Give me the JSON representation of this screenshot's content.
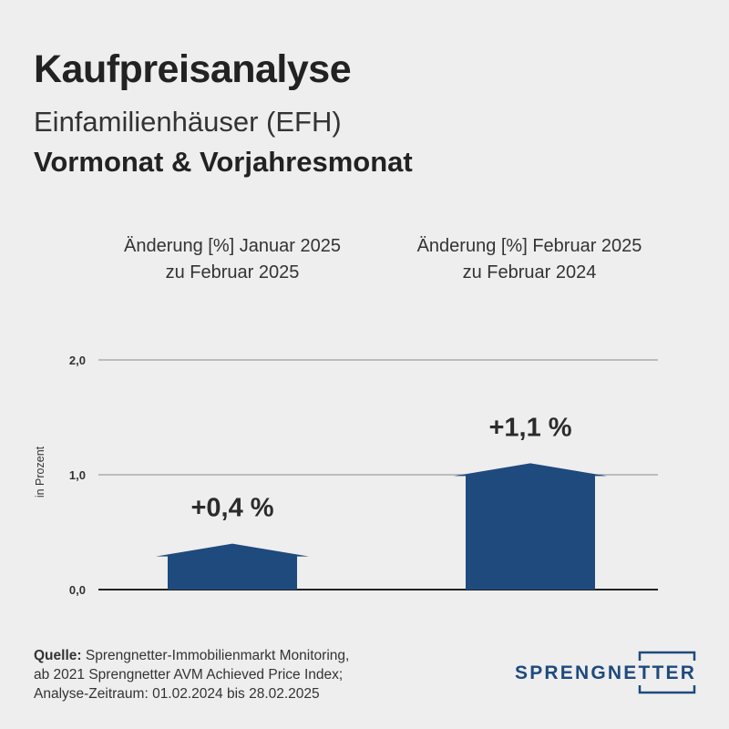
{
  "header": {
    "title": "Kaufpreisanalyse",
    "subtitle": "Einfamilienhäuser (EFH)",
    "subtitle2": "Vormonat & Vorjahresmonat"
  },
  "panels": [
    {
      "line1": "Änderung [%] Januar 2025",
      "line2": "zu Februar 2025"
    },
    {
      "line1": "Änderung [%] Februar 2025",
      "line2": "zu Februar 2024"
    }
  ],
  "chart_data": {
    "type": "bar",
    "categories": [
      "Änderung [%] Januar 2025 zu Februar 2025",
      "Änderung [%] Februar 2025 zu Februar 2024"
    ],
    "values": [
      0.4,
      1.1
    ],
    "value_labels": [
      "+0,4 %",
      "+1,1 %"
    ],
    "ylabel": "in Prozent",
    "yticks": [
      "0,0",
      "1,0",
      "2,0"
    ],
    "ytick_values": [
      0,
      1,
      2
    ],
    "ylim": [
      0,
      2
    ],
    "grid": true,
    "bar_color": "#1e4a7e"
  },
  "source": {
    "label": "Quelle:",
    "line1": "Sprengnetter-Immobilienmarkt Monitoring,",
    "line2": "ab 2021 Sprengnetter AVM Achieved Price Index;",
    "line3": "Analyse-Zeitraum: 01.02.2024 bis 28.02.2025"
  },
  "logo": {
    "text": "SPRENGNETTER"
  },
  "colors": {
    "background": "#eeeeee",
    "accent": "#1e4a7e",
    "text": "#2b2b2b"
  }
}
